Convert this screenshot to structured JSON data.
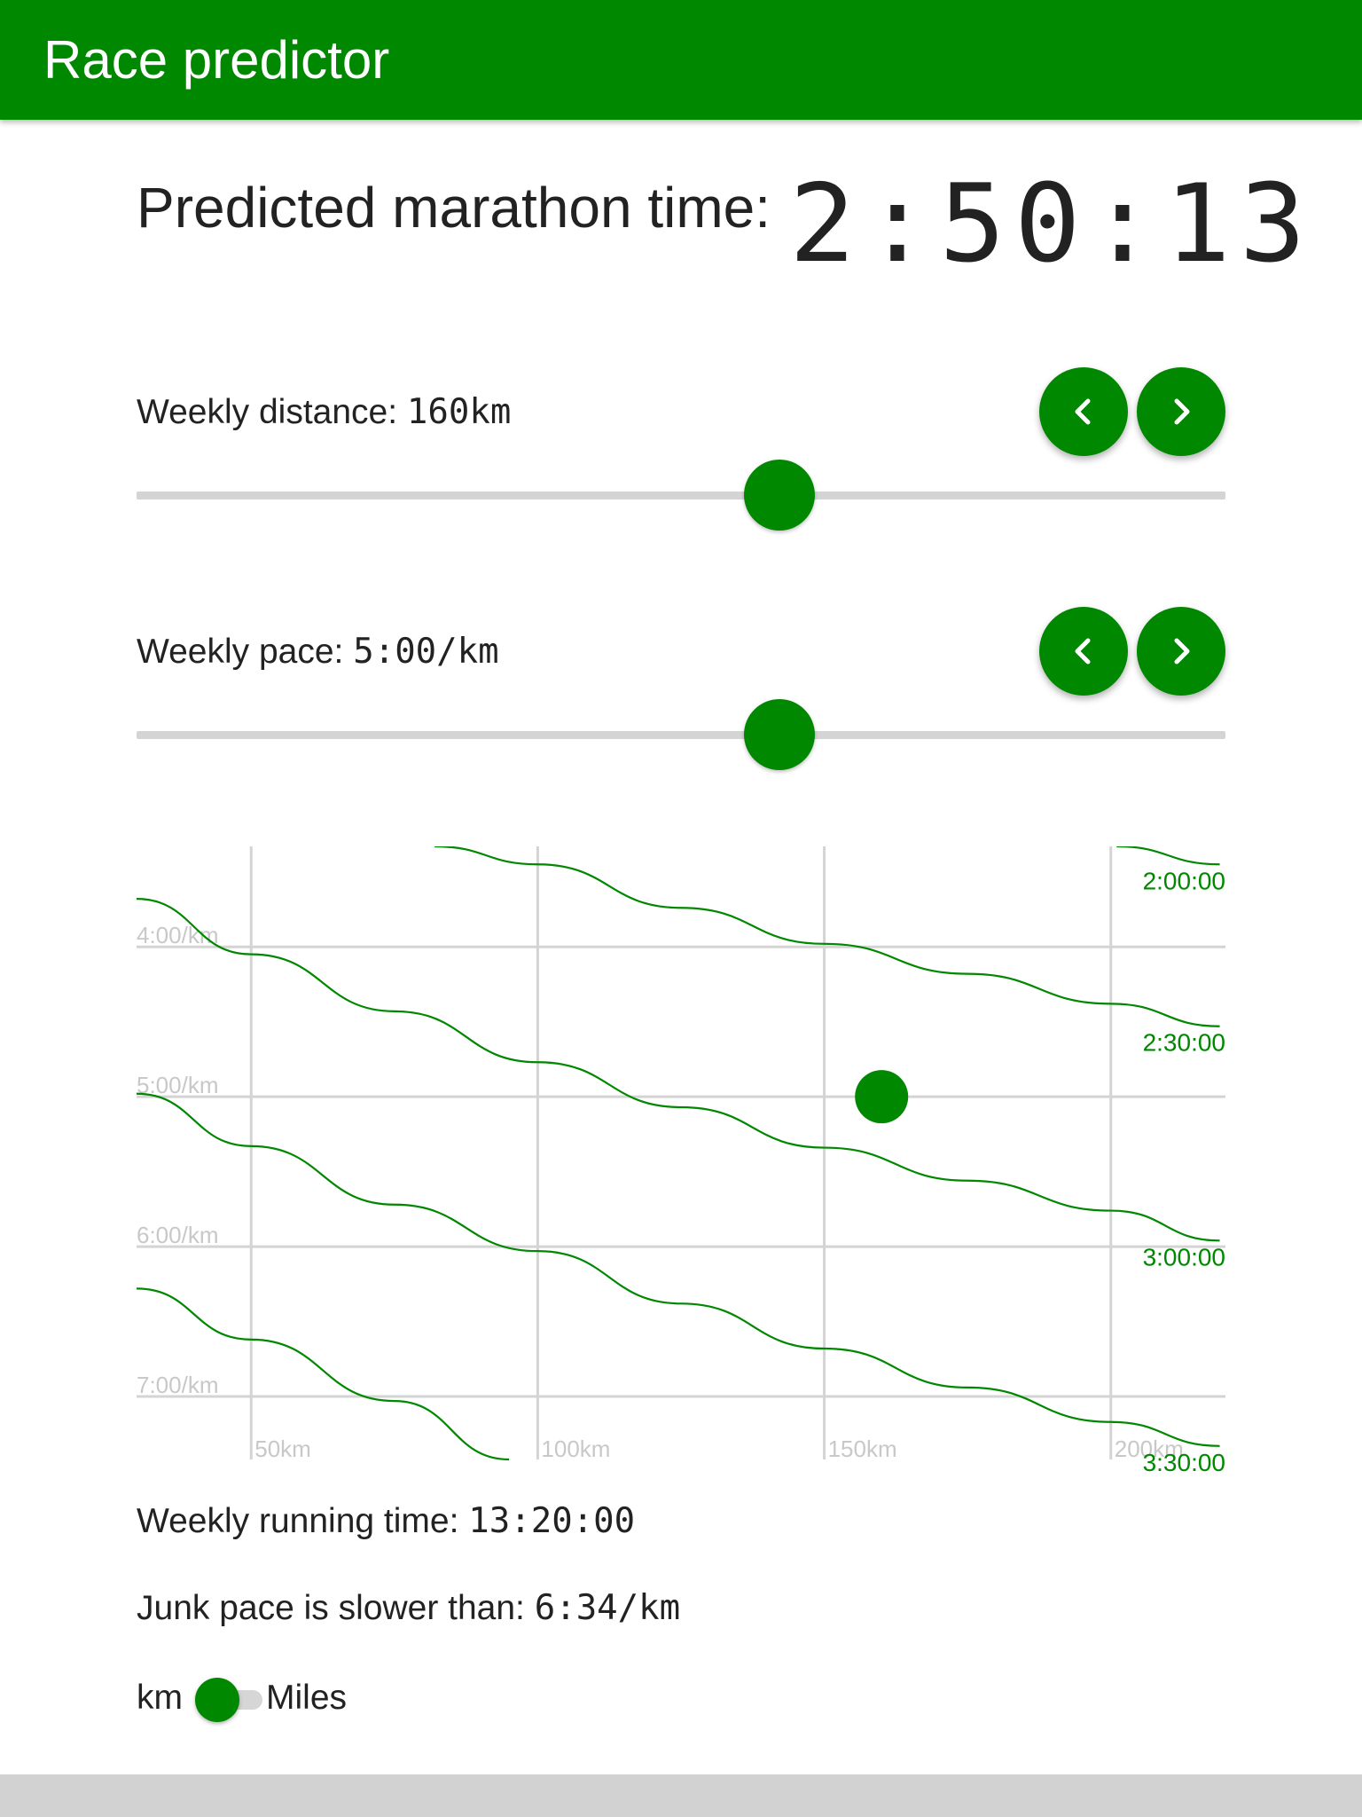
{
  "app": {
    "title": "Race predictor",
    "accent_color": "#008800"
  },
  "prediction": {
    "label": "Predicted marathon time:",
    "time": "2:50:13"
  },
  "distance": {
    "label": "Weekly distance: ",
    "value": "160km",
    "slider_fraction": 0.59,
    "prev_icon": "chevron-left-icon",
    "next_icon": "chevron-right-icon"
  },
  "pace": {
    "label": "Weekly pace: ",
    "value": "5:00/km",
    "slider_fraction": 0.59,
    "prev_icon": "chevron-left-icon",
    "next_icon": "chevron-right-icon"
  },
  "chart_data": {
    "type": "line",
    "x_unit": "km per week",
    "y_unit": "pace min/km",
    "xlim": [
      30,
      220
    ],
    "ylim": [
      3.33,
      7.42
    ],
    "x_ticks": [
      {
        "value": 50,
        "label": "50km"
      },
      {
        "value": 100,
        "label": "100km"
      },
      {
        "value": 150,
        "label": "150km"
      },
      {
        "value": 200,
        "label": "200km"
      }
    ],
    "y_ticks": [
      {
        "value": 4,
        "label": "4:00/km"
      },
      {
        "value": 5,
        "label": "5:00/km"
      },
      {
        "value": 6,
        "label": "6:00/km"
      },
      {
        "value": 7,
        "label": "7:00/km"
      }
    ],
    "series": [
      {
        "name": "2:00:00",
        "points": [
          [
            201,
            3.33
          ],
          [
            219,
            3.45
          ]
        ]
      },
      {
        "name": "2:30:00",
        "points": [
          [
            82,
            3.33
          ],
          [
            100,
            3.45
          ],
          [
            125,
            3.74
          ],
          [
            150,
            3.98
          ],
          [
            175,
            4.18
          ],
          [
            200,
            4.38
          ],
          [
            219,
            4.53
          ]
        ]
      },
      {
        "name": "3:00:00",
        "points": [
          [
            30,
            3.68
          ],
          [
            50,
            4.05
          ],
          [
            75,
            4.43
          ],
          [
            100,
            4.77
          ],
          [
            125,
            5.07
          ],
          [
            150,
            5.34
          ],
          [
            175,
            5.56
          ],
          [
            200,
            5.76
          ],
          [
            219,
            5.96
          ]
        ]
      },
      {
        "name": "3:30:00",
        "points": [
          [
            30,
            4.98
          ],
          [
            50,
            5.33
          ],
          [
            75,
            5.72
          ],
          [
            100,
            6.03
          ],
          [
            125,
            6.38
          ],
          [
            150,
            6.68
          ],
          [
            175,
            6.94
          ],
          [
            200,
            7.17
          ],
          [
            219,
            7.33
          ]
        ]
      },
      {
        "name": "",
        "points": [
          [
            30,
            6.28
          ],
          [
            50,
            6.62
          ],
          [
            75,
            7.03
          ],
          [
            95,
            7.42
          ]
        ]
      }
    ],
    "marker": {
      "x": 160,
      "y": 5.0
    }
  },
  "weekly_time": {
    "label": "Weekly running time: ",
    "value": "13:20:00"
  },
  "junk_pace": {
    "label": "Junk pace is slower than: ",
    "value": "6:34/km"
  },
  "units_toggle": {
    "left_label": "km",
    "right_label": "Miles",
    "selected": "km"
  }
}
